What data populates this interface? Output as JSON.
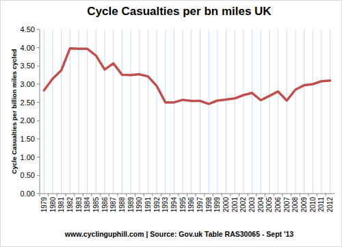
{
  "chart_data": {
    "type": "line",
    "title": "Cycle Casualties per bn miles UK",
    "y_label": "Cycle Casualties per billion miles cycled",
    "annotations": [
      "www.cyclinguphill.com | Source:  Gov.uk  Table RAS30065 - Sept '13"
    ],
    "categories": [
      "1979",
      "1980",
      "1981",
      "1982",
      "1983",
      "1984",
      "1985",
      "1986",
      "1987",
      "1988",
      "1989",
      "1990",
      "1991",
      "1992",
      "1993",
      "1994",
      "1995",
      "1996",
      "1997",
      "1998",
      "1999",
      "2000",
      "2001",
      "2002",
      "2003",
      "2004",
      "2005",
      "2006",
      "2007",
      "2008",
      "2009",
      "2010",
      "2011",
      "2012"
    ],
    "values": [
      2.83,
      3.15,
      3.38,
      3.98,
      3.97,
      3.97,
      3.78,
      3.4,
      3.57,
      3.26,
      3.25,
      3.27,
      3.21,
      2.95,
      2.5,
      2.5,
      2.57,
      2.54,
      2.54,
      2.46,
      2.55,
      2.58,
      2.61,
      2.7,
      2.76,
      2.56,
      2.68,
      2.8,
      2.55,
      2.85,
      2.97,
      3.0,
      3.08,
      3.1
    ],
    "color": "#c0504d",
    "ylim": [
      0,
      4.5
    ],
    "yticks": [
      {
        "value": 0,
        "label": "0.00"
      },
      {
        "value": 0.5,
        "label": "0.50"
      },
      {
        "value": 1,
        "label": "1.00"
      },
      {
        "value": 1.5,
        "label": "1.50"
      },
      {
        "value": 2,
        "label": "2.00"
      },
      {
        "value": 2.5,
        "label": "2.50"
      },
      {
        "value": 3,
        "label": "3.00"
      },
      {
        "value": 3.5,
        "label": "3.50"
      },
      {
        "value": 4,
        "label": "4.00"
      },
      {
        "value": 4.5,
        "label": "4.50"
      }
    ],
    "grid": true
  }
}
